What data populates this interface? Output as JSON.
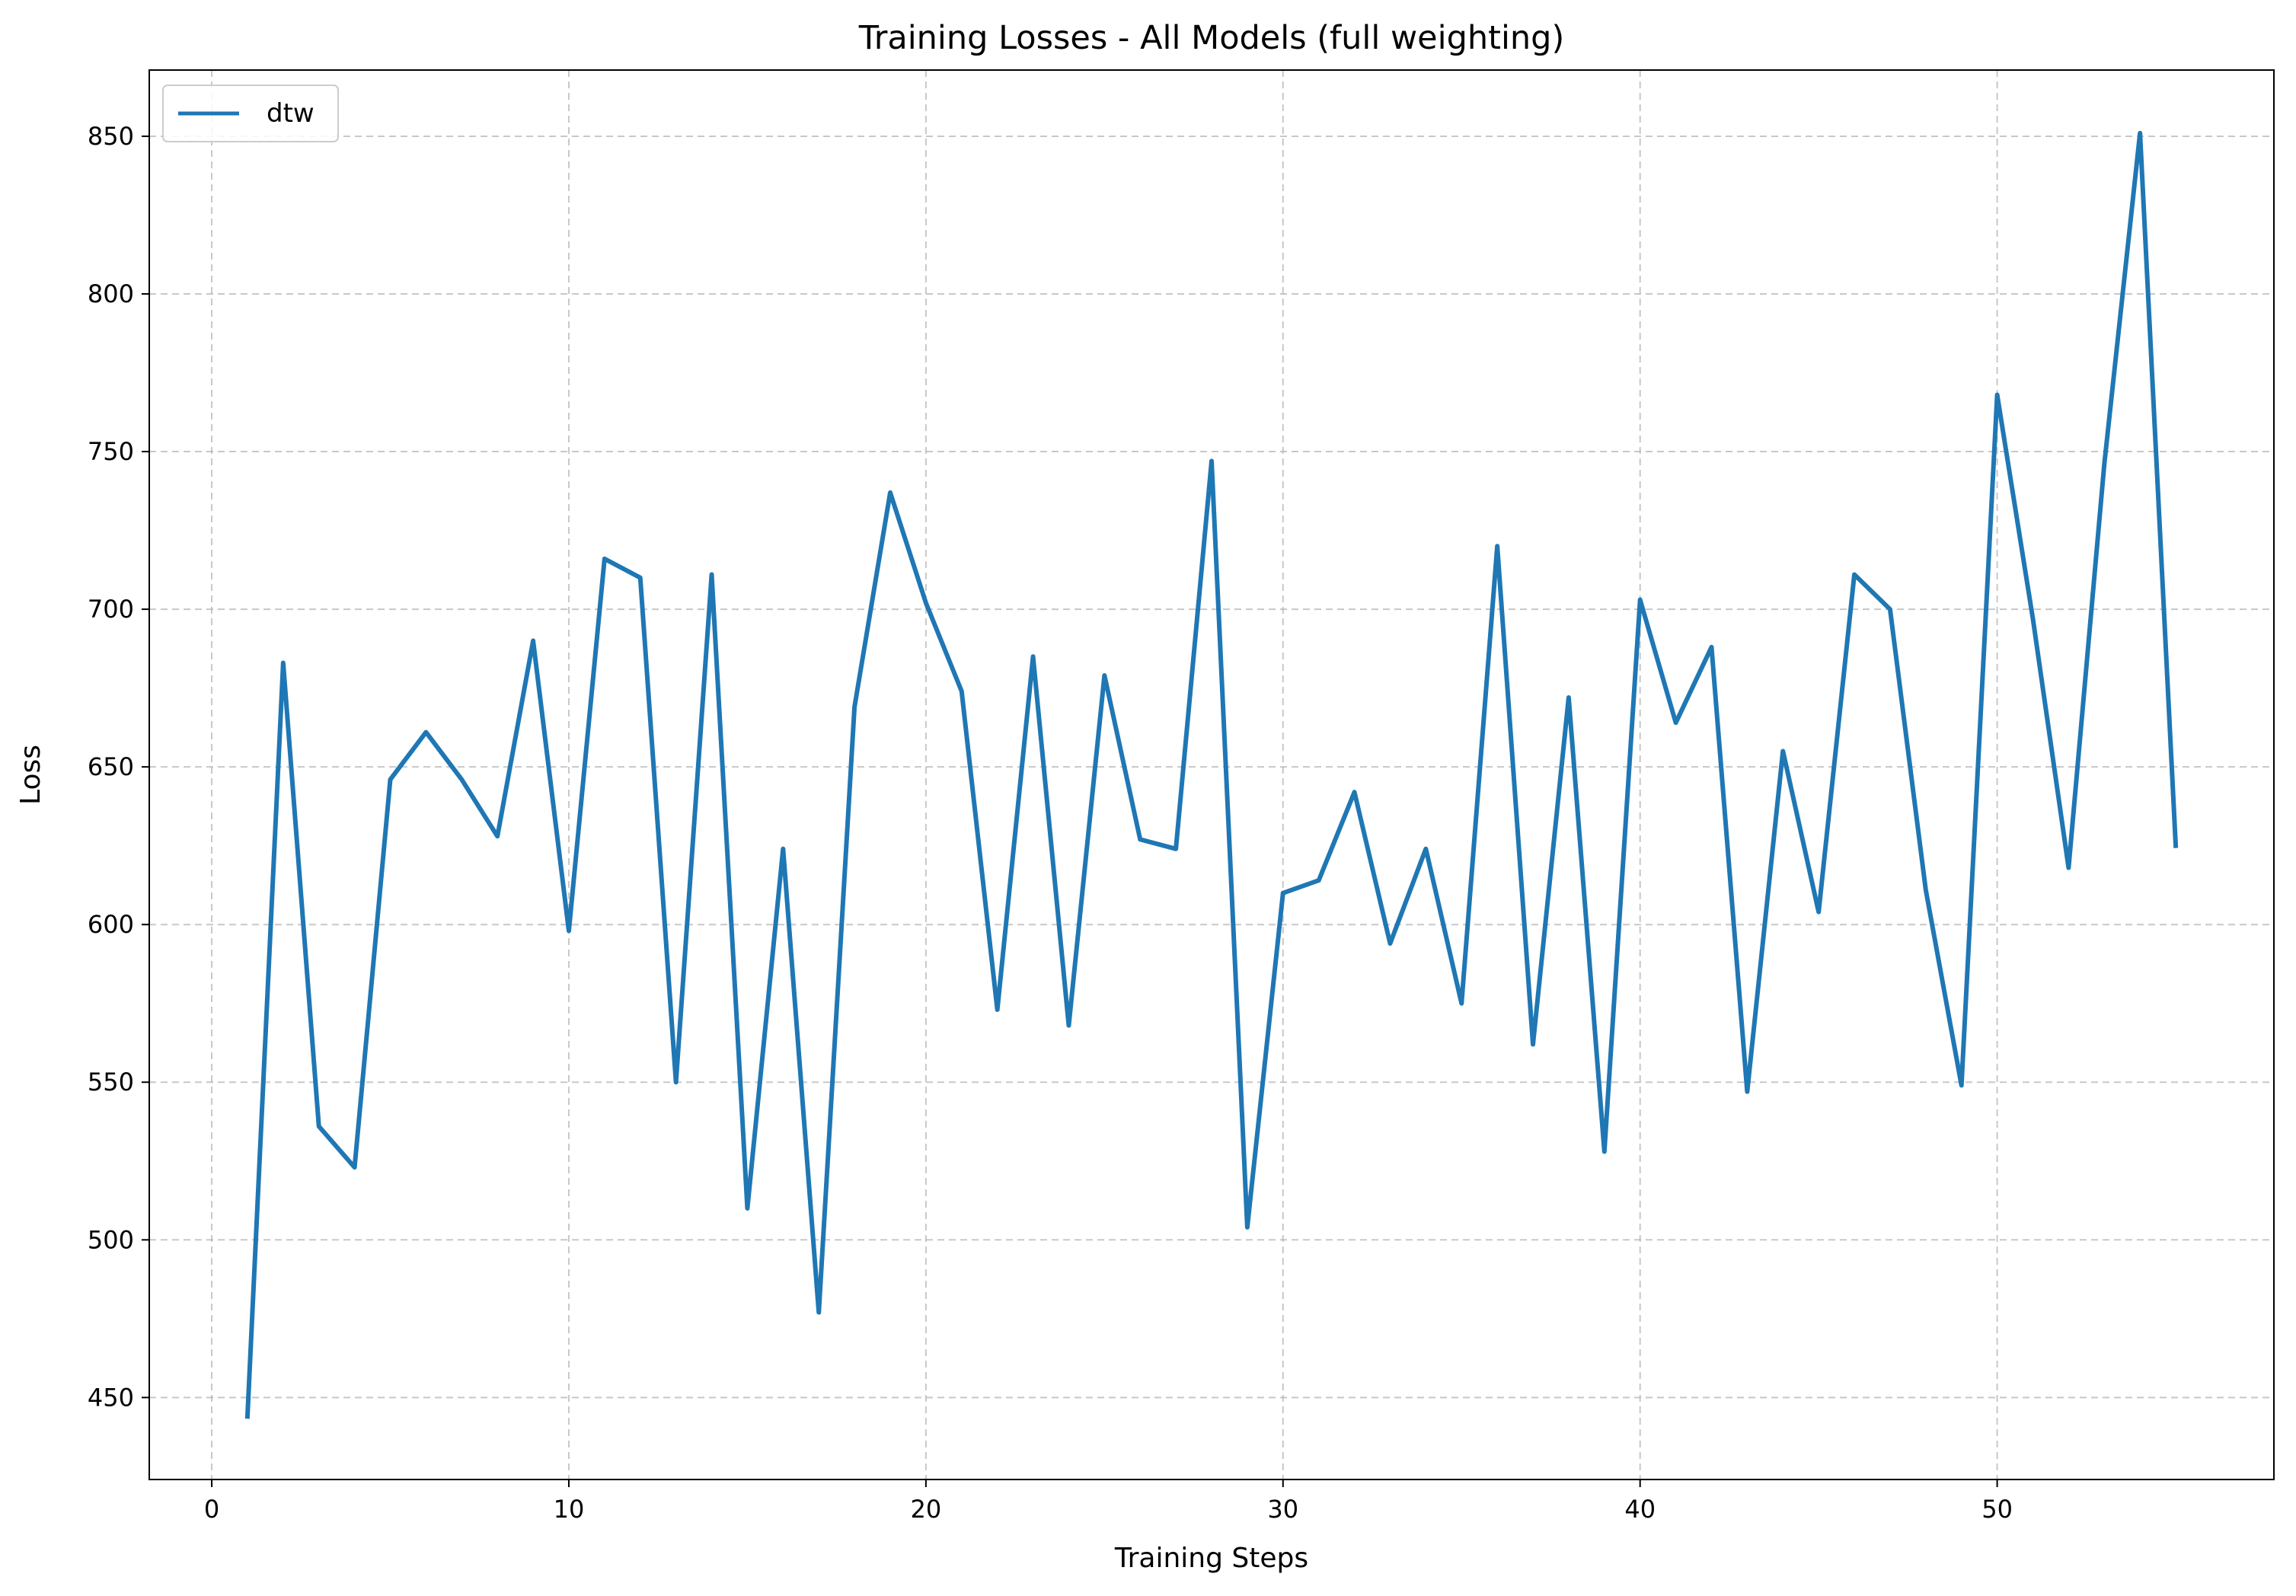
{
  "chart_data": {
    "type": "line",
    "title": "Training Losses - All Models (full weighting)",
    "xlabel": "Training Steps",
    "ylabel": "Loss",
    "xlim": [
      -1.75,
      57.75
    ],
    "ylim": [
      424,
      871
    ],
    "xticks": [
      0,
      10,
      20,
      30,
      40,
      50
    ],
    "yticks": [
      450,
      500,
      550,
      600,
      650,
      700,
      750,
      800,
      850
    ],
    "grid": true,
    "legend_position": "upper left",
    "series": [
      {
        "name": "dtw",
        "color": "#1f77b4",
        "x": [
          1,
          2,
          3,
          4,
          5,
          6,
          7,
          8,
          9,
          10,
          11,
          12,
          13,
          14,
          15,
          16,
          17,
          18,
          19,
          20,
          21,
          22,
          23,
          24,
          25,
          26,
          27,
          28,
          29,
          30,
          31,
          32,
          33,
          34,
          35,
          36,
          37,
          38,
          39,
          40,
          41,
          42,
          43,
          44,
          45,
          46,
          47,
          48,
          49,
          50,
          51,
          52,
          53,
          54,
          55
        ],
        "y": [
          444,
          683,
          536,
          523,
          646,
          661,
          646,
          628,
          690,
          598,
          716,
          710,
          550,
          711,
          510,
          624,
          477,
          669,
          737,
          702,
          674,
          573,
          685,
          568,
          679,
          627,
          624,
          747,
          504,
          610,
          614,
          642,
          594,
          624,
          575,
          720,
          562,
          672,
          528,
          703,
          664,
          688,
          547,
          655,
          604,
          711,
          700,
          611,
          549,
          768,
          697,
          618,
          746,
          851,
          625
        ]
      }
    ]
  }
}
